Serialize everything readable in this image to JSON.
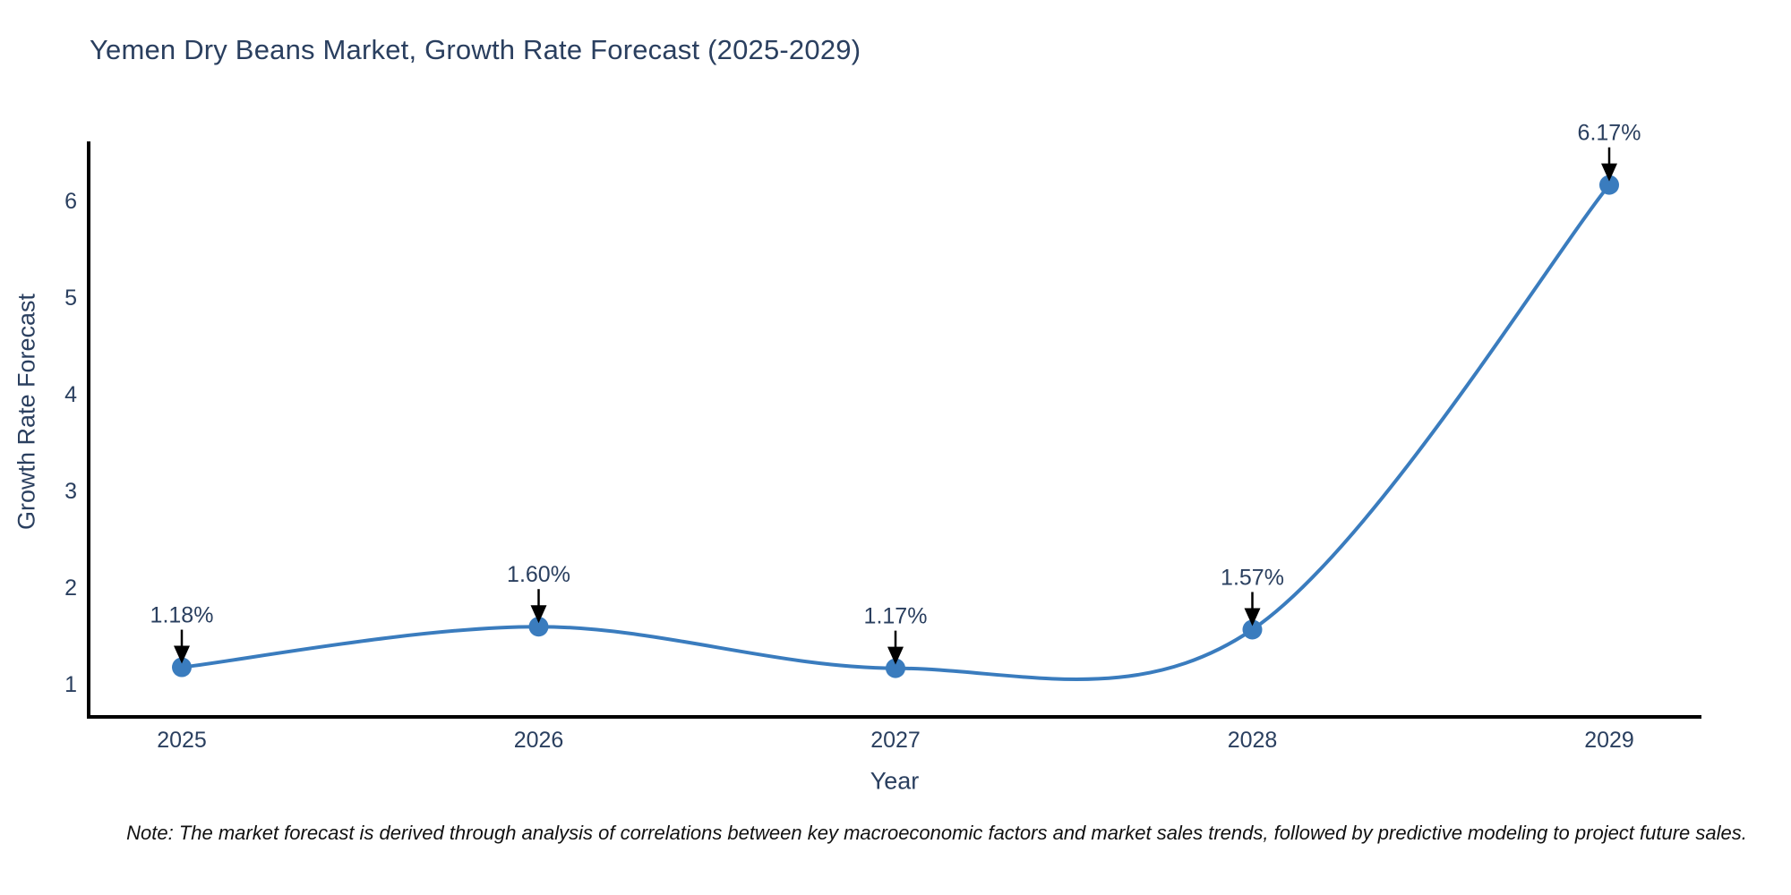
{
  "title": "Yemen Dry Beans Market, Growth Rate Forecast (2025-2029)",
  "note": "Note: The market forecast is derived through analysis of correlations between key macroeconomic factors and market sales trends, followed by predictive modeling to project future sales.",
  "chart_data": {
    "type": "line",
    "title": "Yemen Dry Beans Market, Growth Rate Forecast (2025-2029)",
    "xlabel": "Year",
    "ylabel": "Growth Rate Forecast",
    "x": [
      2025,
      2026,
      2027,
      2028,
      2029
    ],
    "series": [
      {
        "name": "Growth Rate Forecast",
        "values": [
          1.18,
          1.6,
          1.17,
          1.57,
          6.17
        ],
        "labels": [
          "1.18%",
          "1.60%",
          "1.17%",
          "1.57%",
          "6.17%"
        ]
      }
    ],
    "yticks": [
      1,
      2,
      3,
      4,
      5,
      6
    ],
    "ylim": [
      0.67,
      6.6
    ],
    "grid": false,
    "legend": "none",
    "line_shape": "spline",
    "colors": {
      "line": "#3a7cbe",
      "marker": "#3a7cbe",
      "axis": "#000000",
      "tick_text": "#2a3f5f",
      "annotation_text": "#2a3f5f",
      "annotation_arrow": "#000000",
      "background": "#ffffff"
    }
  }
}
